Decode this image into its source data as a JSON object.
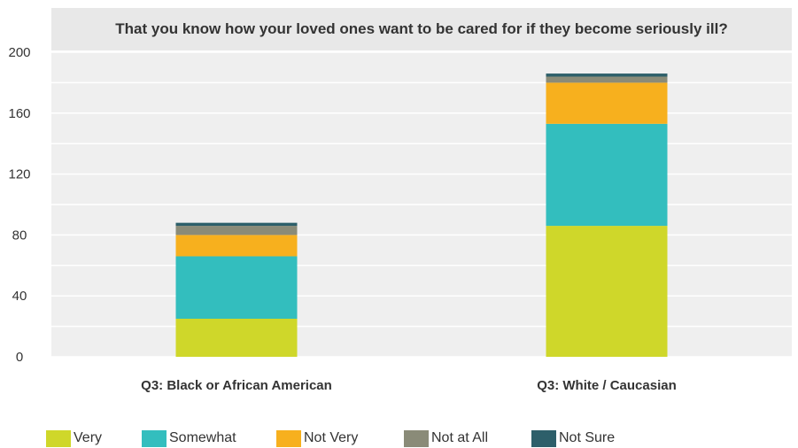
{
  "chart_data": {
    "type": "bar",
    "stacked": true,
    "title": "That you know how your loved ones want to be cared for if they become seriously ill?",
    "xlabel": "",
    "ylabel": "",
    "ylim": [
      0,
      200
    ],
    "yticks": [
      0,
      40,
      80,
      120,
      160,
      200
    ],
    "grid": true,
    "legend_position": "bottom",
    "categories": [
      "Q3: Black or African American",
      "Q3: White / Caucasian"
    ],
    "series": [
      {
        "name": "Very",
        "color": "#cfd72a",
        "values": [
          25,
          86
        ]
      },
      {
        "name": "Somewhat",
        "color": "#33bebe",
        "values": [
          41,
          67
        ]
      },
      {
        "name": "Not Very",
        "color": "#f7b01e",
        "values": [
          14,
          27
        ]
      },
      {
        "name": "Not at All",
        "color": "#8a8b78",
        "values": [
          6,
          4
        ]
      },
      {
        "name": "Not Sure",
        "color": "#2d5f6a",
        "values": [
          2,
          2
        ]
      }
    ]
  }
}
